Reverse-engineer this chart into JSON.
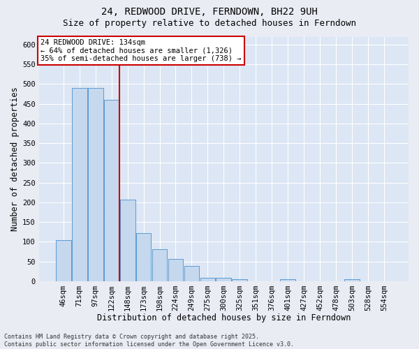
{
  "title": "24, REDWOOD DRIVE, FERNDOWN, BH22 9UH",
  "subtitle": "Size of property relative to detached houses in Ferndown",
  "xlabel": "Distribution of detached houses by size in Ferndown",
  "ylabel": "Number of detached properties",
  "footer_line1": "Contains HM Land Registry data © Crown copyright and database right 2025.",
  "footer_line2": "Contains public sector information licensed under the Open Government Licence v3.0.",
  "categories": [
    "46sqm",
    "71sqm",
    "97sqm",
    "122sqm",
    "148sqm",
    "173sqm",
    "198sqm",
    "224sqm",
    "249sqm",
    "275sqm",
    "300sqm",
    "325sqm",
    "351sqm",
    "376sqm",
    "401sqm",
    "427sqm",
    "452sqm",
    "478sqm",
    "503sqm",
    "528sqm",
    "554sqm"
  ],
  "values": [
    105,
    490,
    490,
    460,
    207,
    122,
    82,
    57,
    38,
    8,
    8,
    5,
    0,
    0,
    5,
    0,
    0,
    0,
    5,
    0,
    0
  ],
  "bar_color": "#c5d8ee",
  "bar_edge_color": "#5b9bd5",
  "vline_color": "#cc0000",
  "vline_x": 3.475,
  "annotation_text": "24 REDWOOD DRIVE: 134sqm\n← 64% of detached houses are smaller (1,326)\n35% of semi-detached houses are larger (738) →",
  "annotation_box_facecolor": "white",
  "annotation_box_edgecolor": "#cc0000",
  "ylim_max": 620,
  "yticks": [
    0,
    50,
    100,
    150,
    200,
    250,
    300,
    350,
    400,
    450,
    500,
    550,
    600
  ],
  "fig_facecolor": "#eaecf4",
  "ax_facecolor": "#dce6f4",
  "grid_color": "white",
  "title_fontsize": 10,
  "subtitle_fontsize": 9,
  "xlabel_fontsize": 8.5,
  "ylabel_fontsize": 8.5,
  "tick_fontsize": 7.5,
  "annot_fontsize": 7.5,
  "footer_fontsize": 6
}
